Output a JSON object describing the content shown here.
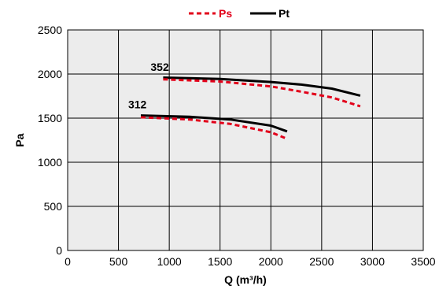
{
  "chart_data": {
    "type": "line",
    "title": "",
    "xlabel": "Q (m³/h)",
    "ylabel": "Pa",
    "xlim": [
      0,
      3500
    ],
    "ylim": [
      0,
      2500
    ],
    "xticks": [
      0,
      500,
      1000,
      1500,
      2000,
      2500,
      3000,
      3500
    ],
    "yticks": [
      0,
      500,
      1000,
      1500,
      2000,
      2500
    ],
    "grid": true,
    "legend_position": "top-center",
    "legend": [
      {
        "name": "Ps",
        "color": "#e2001a",
        "style": "dashed"
      },
      {
        "name": "Pt",
        "color": "#000000",
        "style": "solid"
      }
    ],
    "series": [
      {
        "legend": "Pt",
        "curve": "352",
        "color": "#000000",
        "style": "solid",
        "points": [
          [
            940,
            1960
          ],
          [
            1500,
            1945
          ],
          [
            2000,
            1910
          ],
          [
            2300,
            1880
          ],
          [
            2600,
            1835
          ],
          [
            2880,
            1755
          ]
        ]
      },
      {
        "legend": "Ps",
        "curve": "352",
        "color": "#e2001a",
        "style": "dashed",
        "points": [
          [
            940,
            1940
          ],
          [
            1500,
            1915
          ],
          [
            2000,
            1860
          ],
          [
            2300,
            1800
          ],
          [
            2600,
            1735
          ],
          [
            2880,
            1635
          ]
        ]
      },
      {
        "legend": "Pt",
        "curve": "312",
        "color": "#000000",
        "style": "solid",
        "points": [
          [
            720,
            1530
          ],
          [
            1200,
            1515
          ],
          [
            1600,
            1485
          ],
          [
            2000,
            1415
          ],
          [
            2160,
            1350
          ]
        ]
      },
      {
        "legend": "Ps",
        "curve": "312",
        "color": "#e2001a",
        "style": "dashed",
        "points": [
          [
            720,
            1510
          ],
          [
            1200,
            1485
          ],
          [
            1600,
            1435
          ],
          [
            2000,
            1340
          ],
          [
            2160,
            1265
          ]
        ]
      }
    ],
    "annotations": [
      {
        "text": "352",
        "x": 940,
        "y": 2000
      },
      {
        "text": "312",
        "x": 720,
        "y": 1575
      }
    ]
  }
}
